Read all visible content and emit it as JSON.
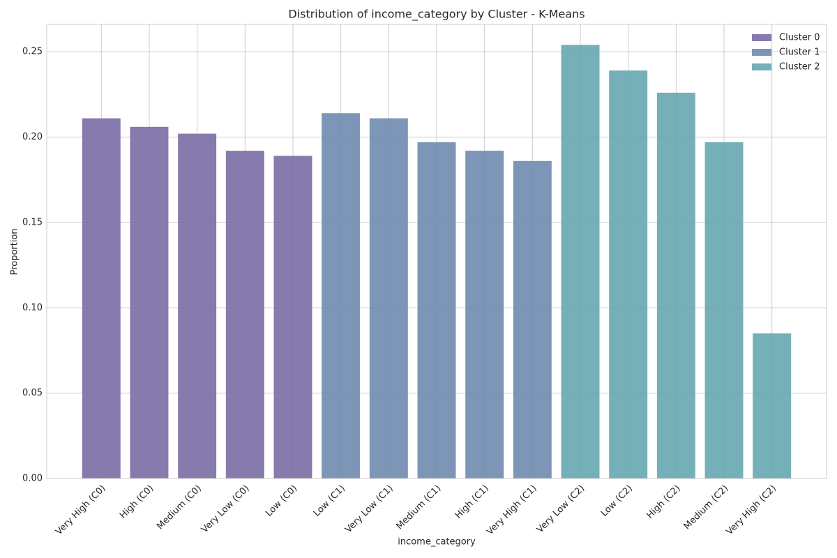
{
  "chart_data": {
    "type": "bar",
    "title": "Distribution of income_category by Cluster - K-Means",
    "xlabel": "income_category",
    "ylabel": "Proportion",
    "categories": [
      "Very High (C0)",
      "High (C0)",
      "Medium (C0)",
      "Very Low (C0)",
      "Low (C0)",
      "Low (C1)",
      "Very Low (C1)",
      "Medium (C1)",
      "High (C1)",
      "Very High (C1)",
      "Very Low (C2)",
      "Low (C2)",
      "High (C2)",
      "Medium (C2)",
      "Very High (C2)"
    ],
    "series": [
      {
        "name": "Cluster 0",
        "color": "#7a6ca3",
        "values": [
          0.211,
          0.206,
          0.202,
          0.192,
          0.189,
          null,
          null,
          null,
          null,
          null,
          null,
          null,
          null,
          null,
          null
        ]
      },
      {
        "name": "Cluster 1",
        "color": "#6f8aaf",
        "values": [
          null,
          null,
          null,
          null,
          null,
          0.214,
          0.211,
          0.197,
          0.192,
          0.186,
          null,
          null,
          null,
          null,
          null
        ]
      },
      {
        "name": "Cluster 2",
        "color": "#66a6b0",
        "values": [
          null,
          null,
          null,
          null,
          null,
          null,
          null,
          null,
          null,
          null,
          0.254,
          0.239,
          0.226,
          0.197,
          0.085
        ]
      }
    ],
    "ylim": [
      0,
      0.266
    ],
    "yticks": [
      {
        "value": 0,
        "label": "0.00"
      },
      {
        "value": 0.05,
        "label": "0.05"
      },
      {
        "value": 0.1,
        "label": "0.10"
      },
      {
        "value": 0.15,
        "label": "0.15"
      },
      {
        "value": 0.2,
        "label": "0.20"
      },
      {
        "value": 0.25,
        "label": "0.25"
      }
    ],
    "grid": true,
    "legend": "upper right"
  }
}
